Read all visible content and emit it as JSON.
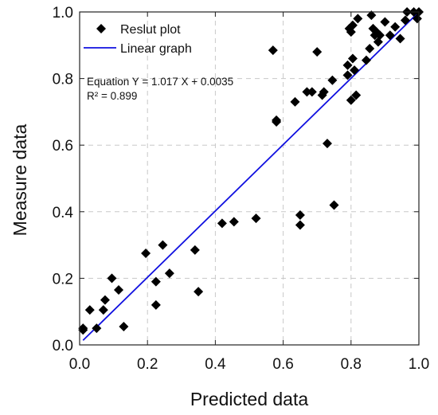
{
  "chart_data": {
    "type": "scatter",
    "xlabel": "Predicted data",
    "ylabel": "Measure data",
    "xlim": [
      0,
      1.0
    ],
    "ylim": [
      0,
      1.0
    ],
    "xticks": [
      "0.0",
      "0.2",
      "0.4",
      "0.6",
      "0.8",
      "1.0"
    ],
    "yticks": [
      "0.0",
      "0.2",
      "0.4",
      "0.6",
      "0.8",
      "1.0"
    ],
    "grid": true,
    "legend_position": "top-left",
    "series": [
      {
        "name": "Reslut plot",
        "marker": "diamond",
        "color": "#000000",
        "points": [
          [
            0.01,
            0.05
          ],
          [
            0.01,
            0.045
          ],
          [
            0.03,
            0.105
          ],
          [
            0.05,
            0.05
          ],
          [
            0.07,
            0.105
          ],
          [
            0.075,
            0.135
          ],
          [
            0.095,
            0.2
          ],
          [
            0.115,
            0.165
          ],
          [
            0.13,
            0.055
          ],
          [
            0.195,
            0.275
          ],
          [
            0.225,
            0.19
          ],
          [
            0.225,
            0.12
          ],
          [
            0.245,
            0.3
          ],
          [
            0.265,
            0.215
          ],
          [
            0.34,
            0.285
          ],
          [
            0.35,
            0.16
          ],
          [
            0.42,
            0.365
          ],
          [
            0.455,
            0.37
          ],
          [
            0.52,
            0.38
          ],
          [
            0.57,
            0.885
          ],
          [
            0.58,
            0.675
          ],
          [
            0.58,
            0.67
          ],
          [
            0.635,
            0.73
          ],
          [
            0.65,
            0.39
          ],
          [
            0.65,
            0.36
          ],
          [
            0.67,
            0.76
          ],
          [
            0.685,
            0.76
          ],
          [
            0.7,
            0.88
          ],
          [
            0.715,
            0.75
          ],
          [
            0.72,
            0.76
          ],
          [
            0.73,
            0.605
          ],
          [
            0.745,
            0.795
          ],
          [
            0.75,
            0.42
          ],
          [
            0.79,
            0.81
          ],
          [
            0.79,
            0.84
          ],
          [
            0.795,
            0.95
          ],
          [
            0.8,
            0.735
          ],
          [
            0.8,
            0.94
          ],
          [
            0.805,
            0.96
          ],
          [
            0.805,
            0.86
          ],
          [
            0.81,
            0.825
          ],
          [
            0.815,
            0.75
          ],
          [
            0.82,
            0.98
          ],
          [
            0.845,
            0.855
          ],
          [
            0.855,
            0.89
          ],
          [
            0.86,
            0.99
          ],
          [
            0.865,
            0.95
          ],
          [
            0.87,
            0.93
          ],
          [
            0.875,
            0.94
          ],
          [
            0.88,
            0.91
          ],
          [
            0.885,
            0.93
          ],
          [
            0.9,
            0.97
          ],
          [
            0.915,
            0.93
          ],
          [
            0.93,
            0.955
          ],
          [
            0.945,
            0.92
          ],
          [
            0.96,
            0.975
          ],
          [
            0.965,
            1.0
          ],
          [
            0.985,
            1.0
          ],
          [
            0.995,
            0.98
          ],
          [
            1.0,
            1.0
          ]
        ]
      },
      {
        "name": "Linear graph",
        "type": "line",
        "color": "#1010e0",
        "x": [
          0.01,
          1.0
        ],
        "y": [
          0.01367,
          1.0205
        ]
      }
    ],
    "annotations": [
      "Equation Y = 1.017 X + 0.0035",
      "R² = 0.899"
    ]
  }
}
